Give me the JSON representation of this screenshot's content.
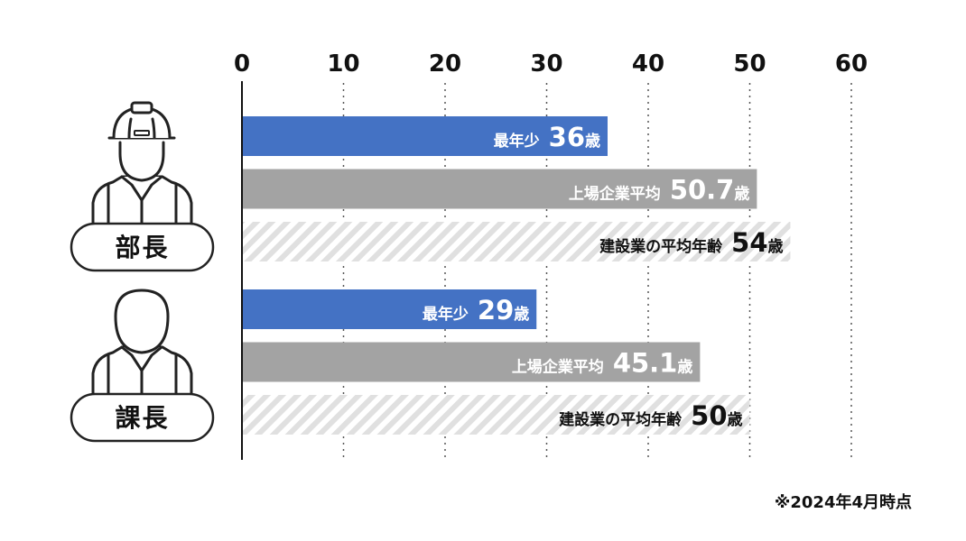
{
  "chart_data": {
    "type": "bar",
    "orientation": "horizontal",
    "xlim": [
      0,
      60
    ],
    "x_ticks": [
      0,
      10,
      20,
      30,
      40,
      50,
      60
    ],
    "grid": "vertical-dotted",
    "groups": [
      {
        "label": "部長",
        "icon": "hardhat-worker-icon",
        "bars": [
          {
            "label": "最年少",
            "value": 36,
            "value_text": "36",
            "unit": "歳",
            "color": "#4472c4",
            "style": "solid",
            "text_color": "#ffffff"
          },
          {
            "label": "上場企業平均",
            "value": 50.7,
            "value_text": "50.7",
            "unit": "歳",
            "color": "#a3a3a3",
            "style": "solid",
            "text_color": "#ffffff"
          },
          {
            "label": "建設業の平均年齢",
            "value": 54,
            "value_text": "54",
            "unit": "歳",
            "color": "#dcdcdc",
            "style": "hatched",
            "text_color": "#111111"
          }
        ]
      },
      {
        "label": "課長",
        "icon": "worker-icon",
        "bars": [
          {
            "label": "最年少",
            "value": 29,
            "value_text": "29",
            "unit": "歳",
            "color": "#4472c4",
            "style": "solid",
            "text_color": "#ffffff"
          },
          {
            "label": "上場企業平均",
            "value": 45.1,
            "value_text": "45.1",
            "unit": "歳",
            "color": "#a3a3a3",
            "style": "solid",
            "text_color": "#ffffff"
          },
          {
            "label": "建設業の平均年齢",
            "value": 50,
            "value_text": "50",
            "unit": "歳",
            "color": "#dcdcdc",
            "style": "hatched",
            "text_color": "#111111"
          }
        ]
      }
    ]
  },
  "footnote": "※2024年4月時点"
}
